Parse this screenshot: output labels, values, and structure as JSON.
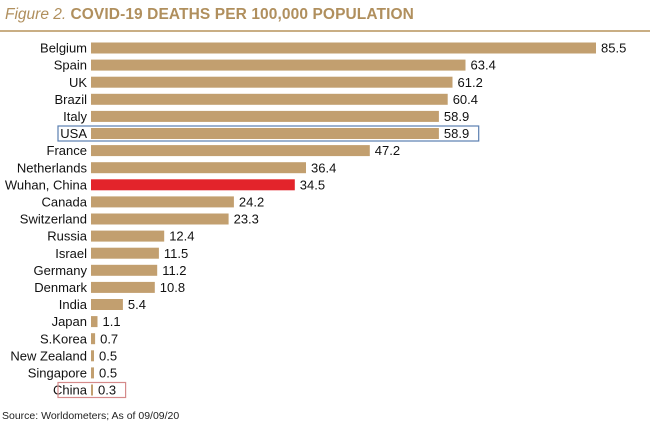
{
  "header": {
    "figure_label": "Figure 2.",
    "title": "COVID-19 DEATHS PER 100,000 POPULATION"
  },
  "footer": {
    "source": "Source: Worldometers; As of 09/09/20"
  },
  "colors": {
    "bar": "#c29f6f",
    "highlight_bar": "#e3242b",
    "title": "#b08f5d",
    "usa_box": "#5b7fb0",
    "china_box": "#d58a8a"
  },
  "chart_data": {
    "type": "bar",
    "orientation": "horizontal",
    "title": "COVID-19 DEATHS PER 100,000 POPULATION",
    "xlabel": "",
    "ylabel": "",
    "xlim": [
      0,
      90
    ],
    "grid": false,
    "categories": [
      "Belgium",
      "Spain",
      "UK",
      "Brazil",
      "Italy",
      "USA",
      "France",
      "Netherlands",
      "Wuhan, China",
      "Canada",
      "Switzerland",
      "Russia",
      "Israel",
      "Germany",
      "Denmark",
      "India",
      "Japan",
      "S.Korea",
      "New Zealand",
      "Singapore",
      "China"
    ],
    "values": [
      85.5,
      63.4,
      61.2,
      60.4,
      58.9,
      58.9,
      47.2,
      36.4,
      34.5,
      24.2,
      23.3,
      12.4,
      11.5,
      11.2,
      10.8,
      5.4,
      1.1,
      0.7,
      0.5,
      0.5,
      0.3
    ],
    "value_labels": [
      "85.5",
      "63.4",
      "61.2",
      "60.4",
      "58.9",
      "58.9",
      "47.2",
      "36.4",
      "34.5",
      "24.2",
      "23.3",
      "12.4",
      "11.5",
      "11.2",
      "10.8",
      "5.4",
      "1.1",
      "0.7",
      "0.5",
      "0.5",
      "0.3"
    ],
    "highlighted": [
      "Wuhan, China"
    ],
    "boxed": {
      "USA": "blue",
      "China": "red"
    }
  }
}
